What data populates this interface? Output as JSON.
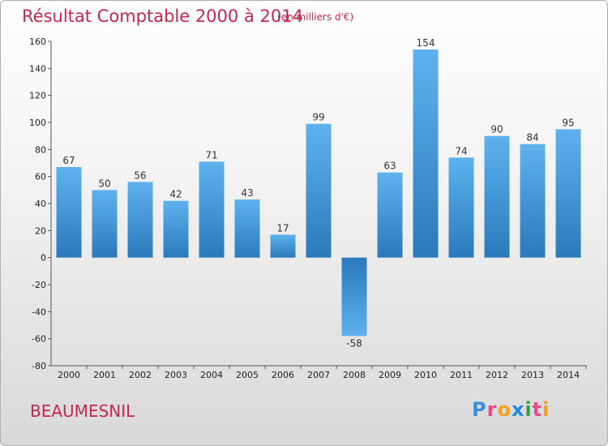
{
  "header": {
    "title": "Résultat Comptable 2000 à 2014",
    "subtitle": "(en milliers d'€)"
  },
  "footer": {
    "place": "BEAUMESNIL",
    "logo": "Proxiti",
    "logo_colors": [
      "#3b8fd9",
      "#e84a8a",
      "#f5a020",
      "#1e88e5",
      "#2ea043",
      "#e84a8a",
      "#f5a020"
    ]
  },
  "colors": {
    "bar_top": "#5fb2ee",
    "bar_bottom": "#2b79bb",
    "title": "#c8264d"
  },
  "chart_data": {
    "type": "bar",
    "title": "Résultat Comptable 2000 à 2014",
    "subtitle": "(en milliers d'€)",
    "xlabel": "",
    "ylabel": "",
    "ylim": [
      -80,
      160
    ],
    "yticks": [
      160,
      140,
      120,
      100,
      80,
      60,
      40,
      20,
      0,
      -20,
      -40,
      -60,
      -80
    ],
    "grid": false,
    "categories": [
      "2000",
      "2001",
      "2002",
      "2003",
      "2004",
      "2005",
      "2006",
      "2007",
      "2008",
      "2009",
      "2010",
      "2011",
      "2012",
      "2013",
      "2014"
    ],
    "values": [
      67,
      50,
      56,
      42,
      71,
      43,
      17,
      99,
      -58,
      63,
      154,
      74,
      90,
      84,
      95
    ]
  }
}
